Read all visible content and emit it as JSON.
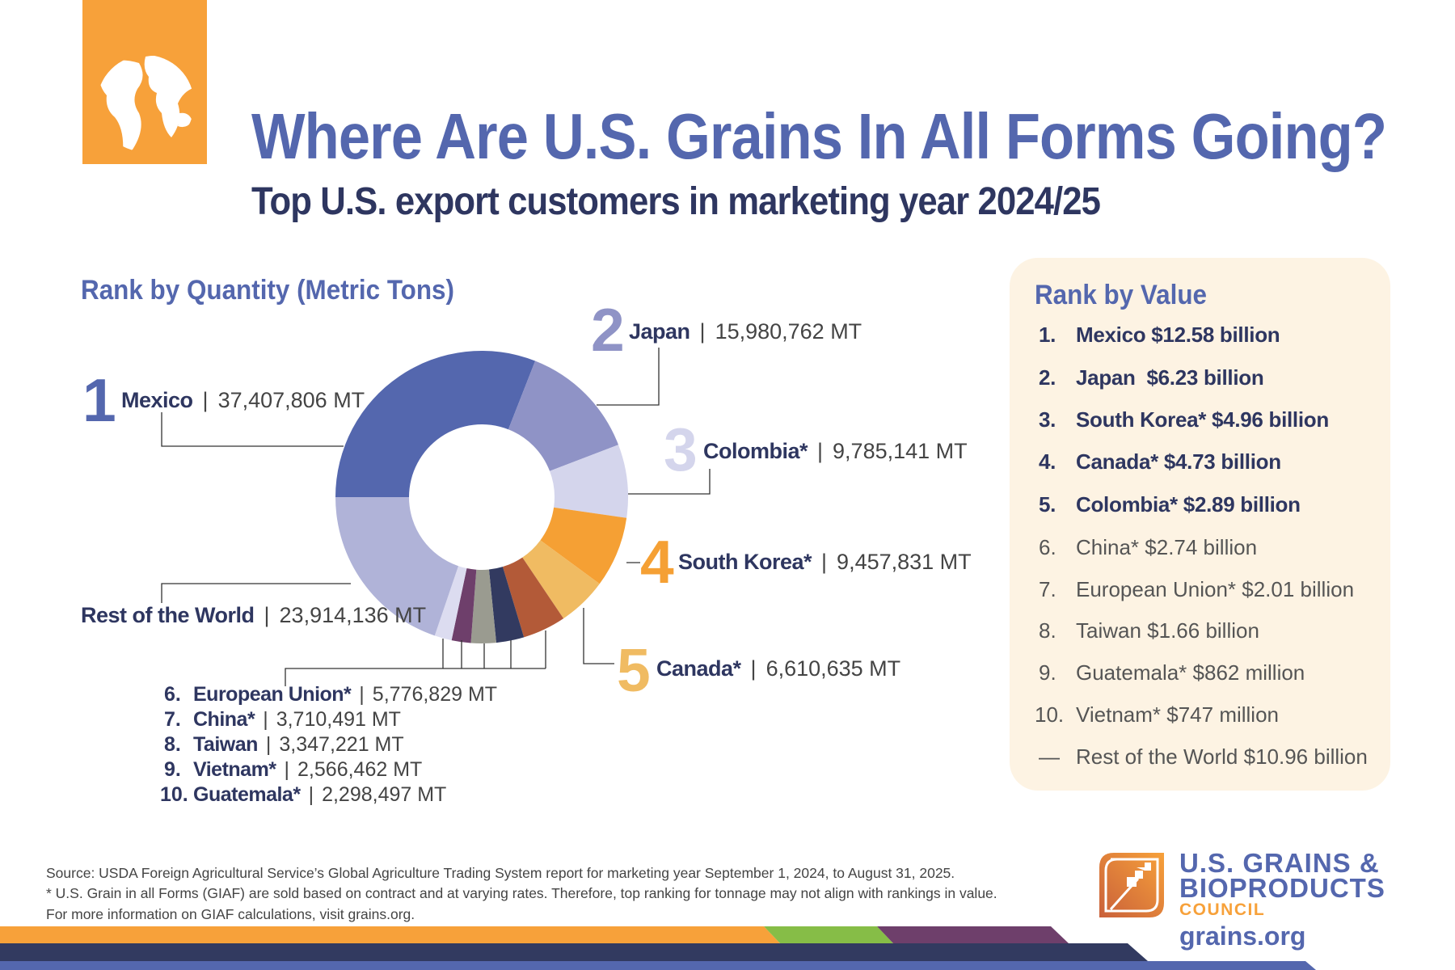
{
  "header": {
    "title": "Where Are U.S. Grains In All Forms Going?",
    "subtitle": "Top U.S. export customers in marketing year 2024/25",
    "icon": "globe-icon"
  },
  "quantity": {
    "heading": "Rank by Quantity (Metric Tons)",
    "separator": "|",
    "top": [
      {
        "rank": "1",
        "name": "Mexico",
        "value": "37,407,806 MT"
      },
      {
        "rank": "2",
        "name": "Japan",
        "value": "15,980,762 MT"
      },
      {
        "rank": "3",
        "name": "Colombia*",
        "value": "9,785,141 MT"
      },
      {
        "rank": "4",
        "name": "South Korea*",
        "value": "9,457,831 MT"
      },
      {
        "rank": "5",
        "name": "Canada*",
        "value": "6,610,635 MT"
      }
    ],
    "rest": {
      "name": "Rest of the World",
      "value": "23,914,136 MT"
    },
    "others": [
      {
        "rank": "6.",
        "name": "European Union*",
        "value": "5,776,829 MT"
      },
      {
        "rank": "7.",
        "name": "China*",
        "value": "3,710,491 MT"
      },
      {
        "rank": "8.",
        "name": "Taiwan",
        "value": "3,347,221 MT"
      },
      {
        "rank": "9.",
        "name": "Vietnam*",
        "value": "2,566,462 MT"
      },
      {
        "rank": "10.",
        "name": "Guatemala*",
        "value": "2,298,497 MT"
      }
    ]
  },
  "value": {
    "heading": "Rank by Value",
    "items": [
      {
        "rank": "1.",
        "text": "Mexico $12.58 billion",
        "bold": true
      },
      {
        "rank": "2.",
        "text": "Japan  $6.23 billion",
        "bold": true
      },
      {
        "rank": "3.",
        "text": "South Korea* $4.96 billion",
        "bold": true
      },
      {
        "rank": "4.",
        "text": "Canada* $4.73 billion",
        "bold": true
      },
      {
        "rank": "5.",
        "text": "Colombia* $2.89 billion",
        "bold": true
      },
      {
        "rank": "6.",
        "text": "China* $2.74 billion",
        "bold": false
      },
      {
        "rank": "7.",
        "text": "European Union* $2.01 billion",
        "bold": false
      },
      {
        "rank": "8.",
        "text": "Taiwan $1.66 billion",
        "bold": false
      },
      {
        "rank": "9.",
        "text": "Guatemala* $862 million",
        "bold": false
      },
      {
        "rank": "10.",
        "text": "Vietnam* $747 million",
        "bold": false
      },
      {
        "rank": "—",
        "text": "Rest of the World $10.96 billion",
        "bold": false
      }
    ]
  },
  "footer": {
    "lines": [
      "Source: USDA Foreign Agricultural Service’s Global Agriculture Trading System report for marketing year September 1, 2024, to August 31, 2025.",
      "* U.S. Grain in all Forms (GIAF) are sold based on contract and at varying rates. Therefore, top ranking for tonnage may not align with rankings in value.",
      "For more information on GIAF calculations, visit grains.org."
    ]
  },
  "logo": {
    "line1": "U.S. GRAINS &",
    "line2": "BIOPRODUCTS",
    "line3": "COUNCIL",
    "url": "grains.org",
    "icon": "grain-stalk-logo-icon"
  },
  "colors": {
    "brand_blue": "#5467ae",
    "navy": "#2e3660",
    "orange": "#f7a13a",
    "panel": "#fdf3e3",
    "stripes": [
      "#f7a13a",
      "#86bd47",
      "#6e3f6b",
      "#323a60",
      "#5467ae"
    ]
  },
  "chart_data": {
    "type": "pie",
    "variant": "donut",
    "title": "Rank by Quantity (Metric Tons)",
    "unit": "MT",
    "categories": [
      "Mexico",
      "Japan",
      "Colombia*",
      "South Korea*",
      "Canada*",
      "European Union*",
      "China*",
      "Taiwan",
      "Vietnam*",
      "Guatemala*",
      "Rest of the World"
    ],
    "values": [
      37407806,
      15980762,
      9785141,
      9457831,
      6610635,
      5776829,
      3710491,
      3347221,
      2566462,
      2298497,
      23914136
    ],
    "colors": [
      "#5467ae",
      "#8f93c6",
      "#d4d5ec",
      "#f5a034",
      "#f0bb62",
      "#b35a38",
      "#323a60",
      "#9a9b90",
      "#6e3f6b",
      "#dcdcf0",
      "#b0b3d8"
    ],
    "start": "9 o'clock, clockwise",
    "legend": "none (leader-line labels)"
  }
}
